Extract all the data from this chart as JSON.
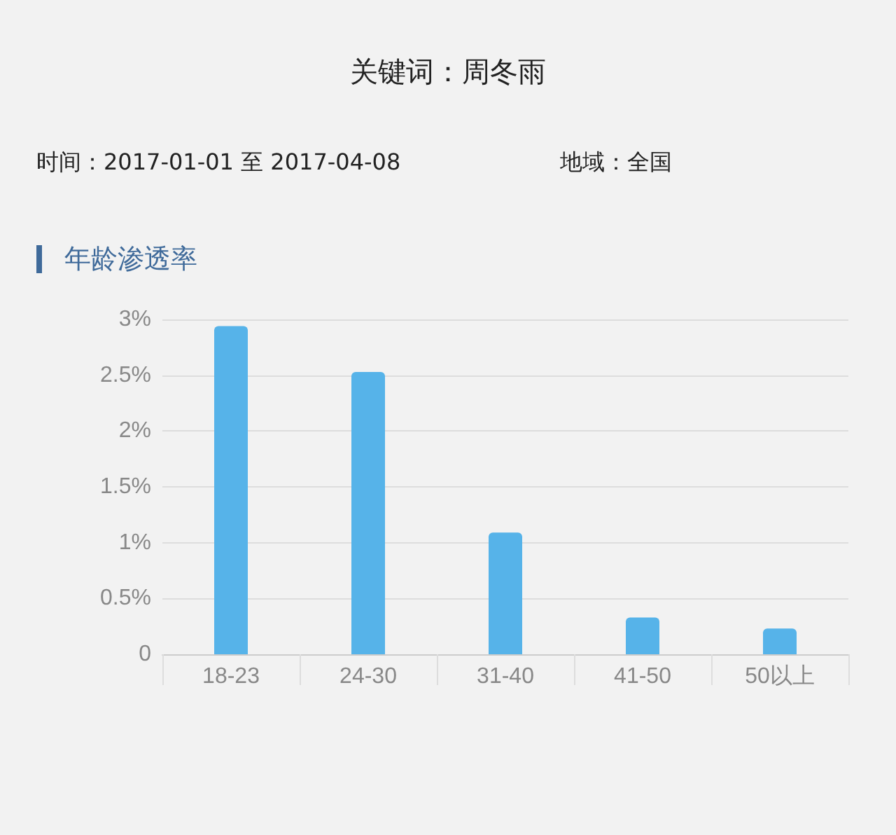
{
  "chart_data": {
    "type": "bar",
    "title": "关键词：周冬雨",
    "subtitle": "时间：2017-01-01 至 2017-04-08",
    "annotations": [
      "地域：全国",
      "年龄渗透率"
    ],
    "categories": [
      "18-23",
      "24-30",
      "31-40",
      "41-50",
      "50以上"
    ],
    "values": [
      2.94,
      2.53,
      1.09,
      0.33,
      0.23
    ],
    "color": "#56b3e9",
    "ylim": [
      0,
      3
    ],
    "yticks": [
      {
        "value": 0,
        "label": "0"
      },
      {
        "value": 0.5,
        "label": "0.5%"
      },
      {
        "value": 1,
        "label": "1%"
      },
      {
        "value": 1.5,
        "label": "1.5%"
      },
      {
        "value": 2,
        "label": "2%"
      },
      {
        "value": 2.5,
        "label": "2.5%"
      },
      {
        "value": 3,
        "label": "3%"
      }
    ],
    "grid": "y"
  }
}
